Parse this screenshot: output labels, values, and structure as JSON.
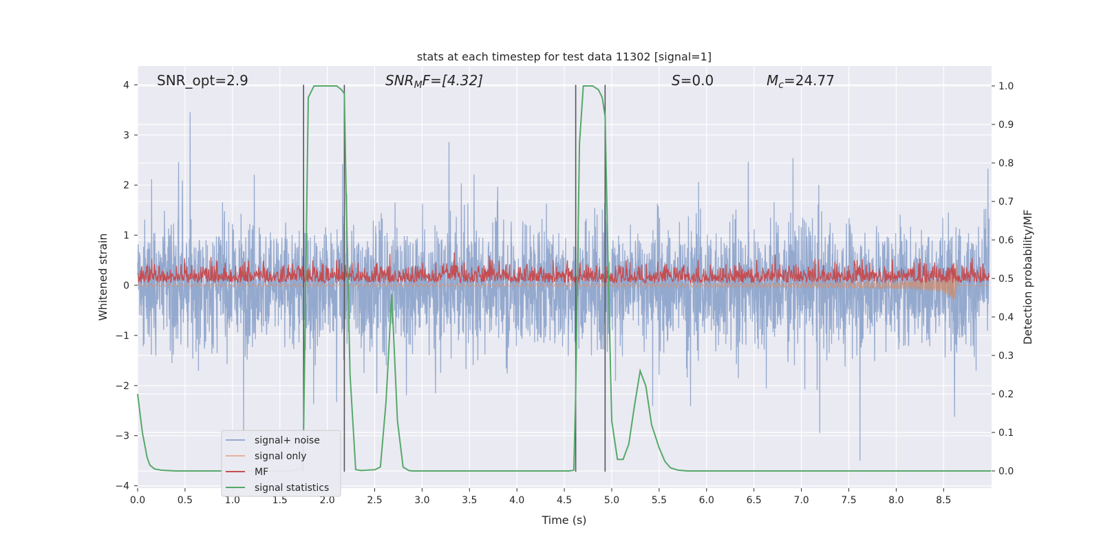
{
  "chart_data": {
    "type": "line",
    "title": "stats at each timestep for test data 11302 [signal=1]",
    "xlabel": "Time (s)",
    "ylabel": "Whitened strain",
    "y2label": "Detection probability/MF",
    "xlim": [
      0.0,
      9.0
    ],
    "ylim": [
      -4.2,
      4.4
    ],
    "y2lim": [
      -0.045,
      1.045
    ],
    "grid": true,
    "x_ticks": [
      "0.0",
      "0.5",
      "1.0",
      "1.5",
      "2.0",
      "2.5",
      "3.0",
      "3.5",
      "4.0",
      "4.5",
      "5.0",
      "5.5",
      "6.0",
      "6.5",
      "7.0",
      "7.5",
      "8.0",
      "8.5"
    ],
    "y_ticks": [
      "−4",
      "−3",
      "−2",
      "−1",
      "0",
      "1",
      "2",
      "3",
      "4"
    ],
    "y2_ticks": [
      "0.0",
      "0.1",
      "0.2",
      "0.3",
      "0.4",
      "0.5",
      "0.6",
      "0.7",
      "0.8",
      "0.9",
      "1.0"
    ],
    "annotations": {
      "snr_opt": "SNR_opt=2.9",
      "snr_mf_base": "SNR",
      "snr_mf_sub": "M",
      "snr_mf_rest": "F=[4.32]",
      "s_base": "S",
      "s_rest": "=0.0",
      "mc_base": "M",
      "mc_sub": "c",
      "mc_rest": "=24.77"
    },
    "vertical_lines_x": [
      1.75,
      2.18,
      4.62,
      4.93
    ],
    "series": [
      {
        "name": "signal+ noise",
        "color": "#4c72b0",
        "axis": "left",
        "typical_envelope": [
          -1.3,
          1.6
        ],
        "max_abs": 4.0,
        "samples": 3600
      },
      {
        "name": "signal only",
        "color": "#dd8452",
        "axis": "left",
        "chirp": {
          "merger_time": 8.65,
          "peak_amplitude": -0.6
        }
      },
      {
        "name": "MF",
        "color": "#c44e52",
        "axis": "left",
        "baseline": 0.0,
        "typical_level": 0.3,
        "max": 1.0
      },
      {
        "name": "signal statistics",
        "color": "#55a868",
        "axis": "right",
        "x": [
          0.0,
          0.05,
          0.1,
          0.13,
          0.18,
          0.25,
          0.4,
          0.8,
          1.2,
          1.6,
          1.73,
          1.75,
          1.8,
          1.86,
          2.0,
          2.1,
          2.15,
          2.18,
          2.2,
          2.24,
          2.3,
          2.36,
          2.42,
          2.5,
          2.56,
          2.62,
          2.68,
          2.74,
          2.8,
          2.86,
          2.9,
          3.0,
          4.0,
          4.55,
          4.6,
          4.62,
          4.66,
          4.7,
          4.8,
          4.86,
          4.9,
          4.93,
          4.96,
          5.0,
          5.06,
          5.12,
          5.18,
          5.24,
          5.3,
          5.36,
          5.42,
          5.5,
          5.56,
          5.62,
          5.7,
          5.8,
          6.0,
          7.0,
          8.0,
          9.0
        ],
        "y": [
          0.2,
          0.1,
          0.035,
          0.015,
          0.005,
          0.002,
          0.0,
          0.0,
          0.0,
          0.0,
          0.005,
          0.1,
          0.97,
          1.0,
          1.0,
          1.0,
          0.99,
          0.98,
          0.7,
          0.25,
          0.003,
          0.001,
          0.002,
          0.003,
          0.01,
          0.18,
          0.46,
          0.13,
          0.01,
          0.001,
          0.0,
          0.0,
          0.0,
          0.0,
          0.002,
          0.2,
          0.85,
          1.0,
          1.0,
          0.99,
          0.97,
          0.92,
          0.55,
          0.13,
          0.03,
          0.03,
          0.07,
          0.17,
          0.26,
          0.22,
          0.12,
          0.06,
          0.025,
          0.008,
          0.002,
          0.0,
          0.0,
          0.0,
          0.0,
          0.0
        ]
      }
    ]
  }
}
